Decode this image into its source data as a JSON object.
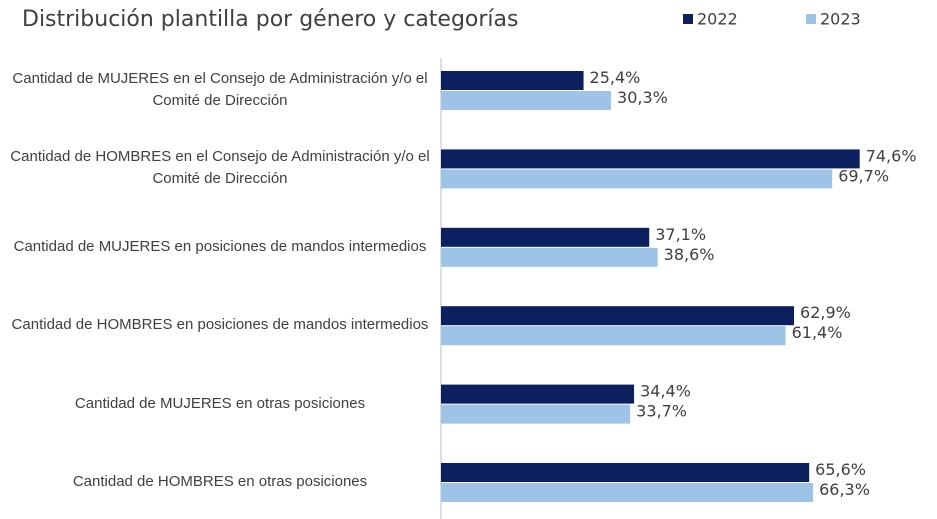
{
  "chart_data": {
    "type": "hbar",
    "title": "Distribución plantilla por género y categorías",
    "categories": [
      "Cantidad de MUJERES en el Consejo de Administración y/o el Comité de Dirección",
      "Cantidad de HOMBRES en el Consejo de Administración y/o el Comité de Dirección",
      "Cantidad de MUJERES en posiciones de mandos intermedios",
      "Cantidad de HOMBRES en posiciones de mandos intermedios",
      "Cantidad de MUJERES en otras posiciones",
      "Cantidad de HOMBRES en otras posiciones"
    ],
    "series": [
      {
        "name": "2022",
        "color": "#0c1f5e",
        "values": [
          25.4,
          74.6,
          37.1,
          62.9,
          34.4,
          65.6
        ],
        "value_labels": [
          "25,4%",
          "74,6%",
          "37,1%",
          "62,9%",
          "34,4%",
          "65,6%"
        ]
      },
      {
        "name": "2023",
        "color": "#9dc3e6",
        "values": [
          30.3,
          69.7,
          38.6,
          61.4,
          33.7,
          66.3
        ],
        "value_labels": [
          "30,3%",
          "69,7%",
          "38,6%",
          "61,4%",
          "33,7%",
          "66,3%"
        ]
      }
    ],
    "xlim": [
      0,
      80
    ],
    "legend": "top-right"
  }
}
